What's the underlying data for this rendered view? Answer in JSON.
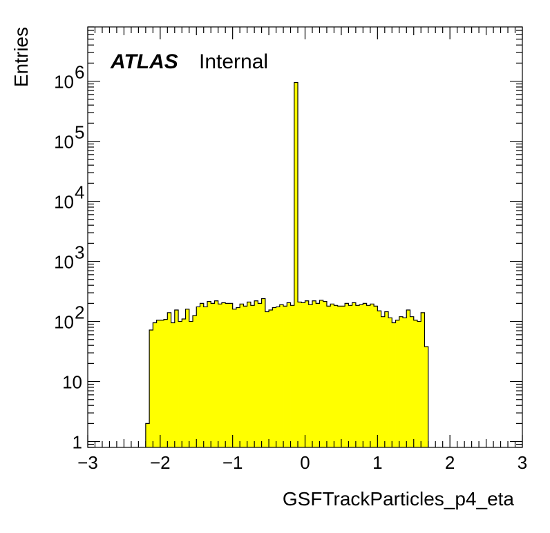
{
  "chart_data": {
    "type": "histogram",
    "xlabel": "GSFTrackParticles_p4_eta",
    "ylabel": "Entries",
    "label_bold": "ATLAS",
    "label_normal": "Internal",
    "xlim": [
      -3,
      3
    ],
    "ylim": [
      0.8,
      8000000
    ],
    "log_y": true,
    "fill_color": "#ffff00",
    "line_color": "#000000",
    "x_ticks": [
      "−3",
      "−2",
      "−1",
      "0",
      "1",
      "2",
      "3"
    ],
    "y_ticks": [
      {
        "value": 1,
        "base": "1",
        "exp": ""
      },
      {
        "value": 10,
        "base": "10",
        "exp": ""
      },
      {
        "value": 100,
        "base": "10",
        "exp": "2"
      },
      {
        "value": 1000,
        "base": "10",
        "exp": "3"
      },
      {
        "value": 10000,
        "base": "10",
        "exp": "4"
      },
      {
        "value": 100000,
        "base": "10",
        "exp": "5"
      },
      {
        "value": 1000000,
        "base": "10",
        "exp": "6"
      }
    ],
    "bin_edges_start": -2.2,
    "bin_width": 0.05,
    "values": [
      2,
      72,
      95,
      105,
      105,
      108,
      140,
      95,
      155,
      100,
      110,
      160,
      100,
      125,
      175,
      200,
      175,
      215,
      200,
      220,
      195,
      205,
      200,
      200,
      160,
      170,
      195,
      180,
      210,
      185,
      220,
      200,
      240,
      145,
      155,
      170,
      175,
      190,
      180,
      205,
      185,
      950000,
      210,
      205,
      220,
      190,
      220,
      200,
      225,
      215,
      180,
      195,
      185,
      180,
      180,
      200,
      185,
      205,
      185,
      190,
      200,
      185,
      195,
      180,
      150,
      120,
      145,
      115,
      95,
      105,
      120,
      115,
      155,
      120,
      105,
      100,
      140,
      38
    ]
  }
}
